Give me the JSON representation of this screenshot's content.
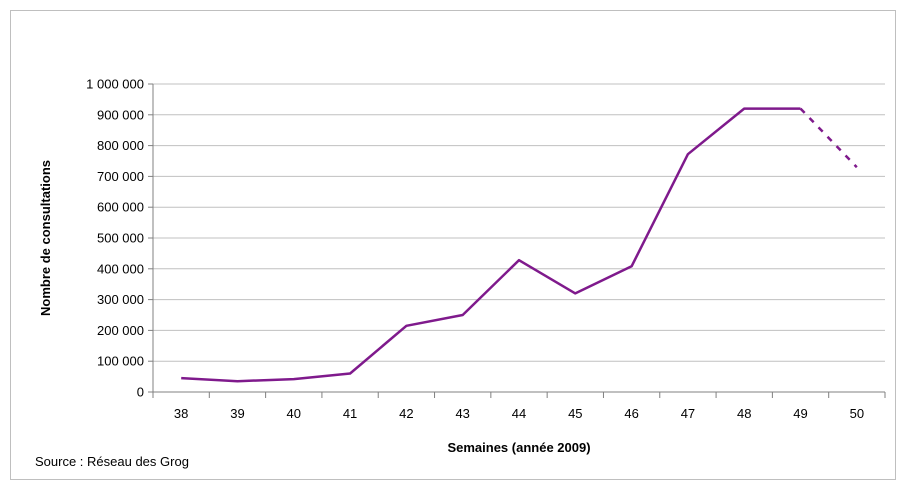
{
  "source_note": "Source : Réseau des Grog",
  "colors": {
    "line": "#7f1a8c",
    "grid": "#c0c0c0",
    "axis": "#808080"
  },
  "chart_data": {
    "type": "line",
    "title": "",
    "xlabel": "Semaines (année 2009)",
    "ylabel": "Nombre de consultations",
    "categories": [
      "38",
      "39",
      "40",
      "41",
      "42",
      "43",
      "44",
      "45",
      "46",
      "47",
      "48",
      "49",
      "50"
    ],
    "series": [
      {
        "values": [
          45000,
          35000,
          42000,
          60000,
          215000,
          250000,
          428000,
          320000,
          408000,
          772000,
          920000,
          920000,
          null
        ],
        "style": "solid"
      },
      {
        "values": [
          null,
          null,
          null,
          null,
          null,
          null,
          null,
          null,
          null,
          null,
          null,
          920000,
          730000
        ],
        "style": "dashed"
      }
    ],
    "ylim": [
      0,
      1000000
    ],
    "yticks": [
      0,
      100000,
      200000,
      300000,
      400000,
      500000,
      600000,
      700000,
      800000,
      900000,
      1000000
    ],
    "ytick_labels": [
      "0",
      "100 000",
      "200 000",
      "300 000",
      "400 000",
      "500 000",
      "600 000",
      "700 000",
      "800 000",
      "900 000",
      "1 000 000"
    ],
    "grid": true,
    "legend": "none"
  }
}
